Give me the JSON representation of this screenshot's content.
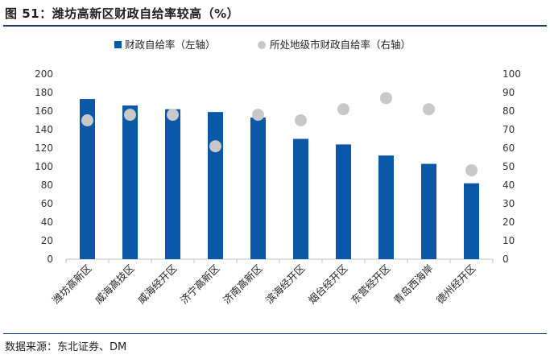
{
  "figure": {
    "title": "图 51：潍坊高新区财政自给率较高（%）",
    "source": "数据来源：东北证券、DM"
  },
  "colors": {
    "bar": "#0b57a8",
    "dot": "#c8c8c8",
    "rule": "#1a3a7a"
  },
  "chart_data": {
    "type": "bar",
    "categories": [
      "潍坊高新区",
      "威海高技区",
      "威海经开区",
      "济宁高新区",
      "济南高新区",
      "滨海经开区",
      "烟台经开区",
      "东营经开区",
      "青岛西海岸",
      "德州经开区"
    ],
    "series": [
      {
        "name": "财政自给率（左轴）",
        "type": "bar",
        "axis": "left",
        "values": [
          173,
          166,
          162,
          159,
          153,
          130,
          124,
          112,
          103,
          82
        ]
      },
      {
        "name": "所处地级市财政自给率（右轴）",
        "type": "scatter",
        "axis": "right",
        "values": [
          75,
          78,
          78,
          61,
          78,
          75,
          81,
          87,
          81,
          48
        ]
      }
    ],
    "y_left": {
      "lim": [
        0,
        200
      ],
      "ticks": [
        0,
        20,
        40,
        60,
        80,
        100,
        120,
        140,
        160,
        180,
        200
      ]
    },
    "y_right": {
      "lim": [
        0,
        100
      ],
      "ticks": [
        0,
        10,
        20,
        30,
        40,
        50,
        60,
        70,
        80,
        90,
        100
      ]
    },
    "legend_position": "top",
    "grid": false
  }
}
